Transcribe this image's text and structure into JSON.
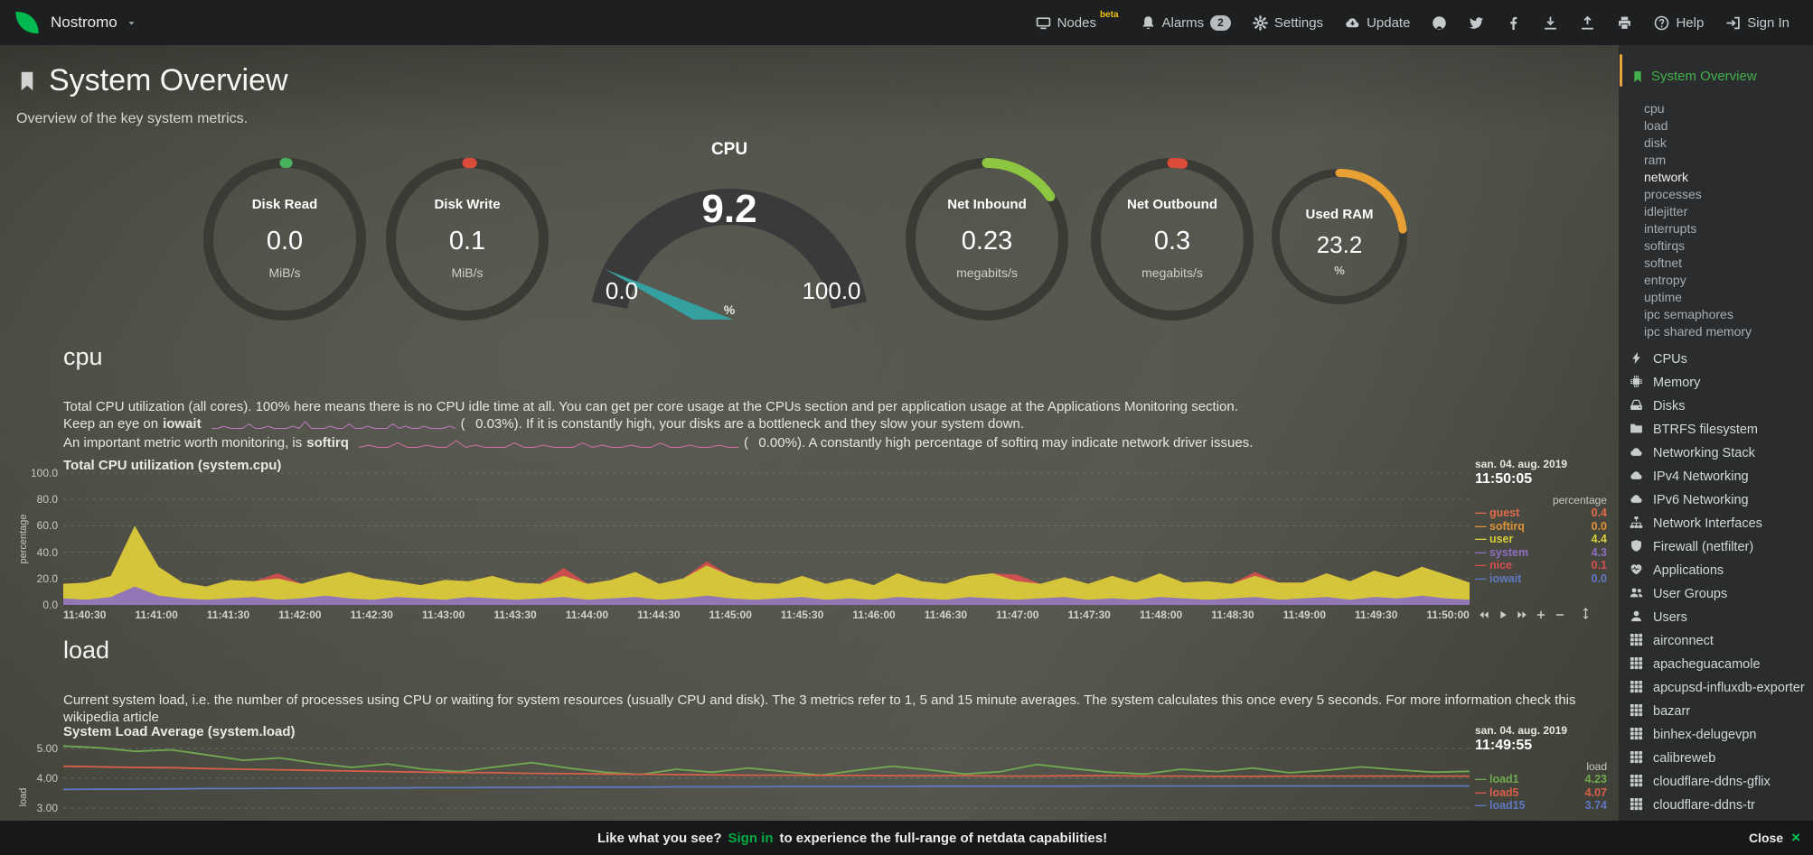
{
  "topbar": {
    "brand": "Nostromo",
    "items": [
      {
        "id": "nodes",
        "icon": "nodes-icon",
        "label": "Nodes",
        "sup": "beta"
      },
      {
        "id": "alarms",
        "icon": "bell-icon",
        "label": "Alarms",
        "badge": "2"
      },
      {
        "id": "settings",
        "icon": "gear-icon",
        "label": "Settings"
      },
      {
        "id": "update",
        "icon": "cloud-update-icon",
        "label": "Update"
      },
      {
        "id": "github",
        "icon": "github-icon"
      },
      {
        "id": "twitter",
        "icon": "twitter-icon"
      },
      {
        "id": "facebook",
        "icon": "facebook-icon"
      },
      {
        "id": "import",
        "icon": "download-icon"
      },
      {
        "id": "export",
        "icon": "upload-icon"
      },
      {
        "id": "print",
        "icon": "print-icon"
      },
      {
        "id": "help",
        "icon": "help-icon",
        "label": "Help"
      },
      {
        "id": "signin",
        "icon": "signin-icon",
        "label": "Sign In"
      }
    ]
  },
  "page": {
    "title": "System Overview",
    "subtitle": "Overview of the key system metrics."
  },
  "gauges": [
    {
      "type": "easypie",
      "label": "Disk Read",
      "value": "0.0",
      "unit": "MiB/s",
      "color": "#46b15a",
      "fraction": 0.006
    },
    {
      "type": "easypie",
      "label": "Disk Write",
      "value": "0.1",
      "unit": "MiB/s",
      "color": "#dd4b39",
      "fraction": 0.01
    },
    {
      "type": "gauge",
      "label": "CPU",
      "value": "9.2",
      "min": "0.0",
      "max": "100.0",
      "unit": "%",
      "color": "#35a0a0",
      "fraction": 0.092
    },
    {
      "type": "easypie",
      "label": "Net Inbound",
      "value": "0.23",
      "unit": "megabits/s",
      "color": "#8fc641",
      "fraction": 0.155
    },
    {
      "type": "easypie",
      "label": "Net Outbound",
      "value": "0.3",
      "unit": "megabits/s",
      "color": "#dd4b39",
      "fraction": 0.022
    },
    {
      "type": "easypie",
      "small": true,
      "label": "Used RAM",
      "value": "23.2",
      "unit": "%",
      "color": "#e8a035",
      "fraction": 0.232
    }
  ],
  "cpu_section": {
    "heading": "cpu",
    "para1": "Total CPU utilization (all cores). 100% here means there is no CPU idle time at all. You can get per core usage at the CPUs section and per application usage at the Applications Monitoring section.",
    "iowait": {
      "prefix": "Keep an eye on",
      "keyword": "iowait",
      "open": "(",
      "value": "0.03%",
      "rest": "). If it is constantly high, your disks are a bottleneck and they slow your system down.",
      "spark_color": "#c17ac4",
      "spark_values": [
        0,
        0,
        1,
        0,
        0,
        0,
        2,
        0,
        0,
        1,
        0,
        0,
        0,
        1,
        0,
        3,
        0,
        0,
        0,
        1,
        0,
        0,
        2,
        0,
        0,
        1,
        0,
        0,
        0,
        2,
        0,
        1,
        0,
        0,
        1,
        0,
        0,
        0,
        1,
        0
      ]
    },
    "softirq": {
      "prefix": "An important metric worth monitoring, is",
      "keyword": "softirq",
      "open": "(",
      "value": "0.00%",
      "rest": "). A constantly high percentage of softirq may indicate network driver issues.",
      "spark_color": "#d4719e",
      "spark_values": [
        0,
        1,
        0,
        0,
        2,
        0,
        0,
        1,
        0,
        0,
        3,
        0,
        1,
        0,
        0,
        0,
        2,
        0,
        0,
        1,
        0,
        0,
        0,
        2,
        0,
        1,
        0,
        0,
        1,
        0,
        0,
        2,
        0,
        0,
        1,
        0,
        0,
        1,
        0,
        0
      ]
    }
  },
  "load_section": {
    "heading": "load",
    "para1": "Current system load, i.e. the number of processes using CPU or waiting for system resources (usually CPU and disk). The 3 metrics refer to 1, 5 and 15 minute averages. The system calculates this once every 5 seconds. For more information check this wikipedia article"
  },
  "sidebar": {
    "active": "System Overview",
    "highlight": "network",
    "toc": [
      "cpu",
      "load",
      "disk",
      "ram",
      "network",
      "processes",
      "idlejitter",
      "interrupts",
      "softirqs",
      "softnet",
      "entropy",
      "uptime",
      "ipc semaphores",
      "ipc shared memory"
    ],
    "menus": [
      {
        "label": "CPUs",
        "icon": "bolt-icon"
      },
      {
        "label": "Memory",
        "icon": "chip-icon"
      },
      {
        "label": "Disks",
        "icon": "disk-icon"
      },
      {
        "label": "BTRFS filesystem",
        "icon": "folder-icon"
      },
      {
        "label": "Networking Stack",
        "icon": "cloud-icon"
      },
      {
        "label": "IPv4 Networking",
        "icon": "cloud-icon"
      },
      {
        "label": "IPv6 Networking",
        "icon": "cloud-icon"
      },
      {
        "label": "Network Interfaces",
        "icon": "network-icon"
      },
      {
        "label": "Firewall (netfilter)",
        "icon": "shield-icon"
      },
      {
        "label": "Applications",
        "icon": "heartbeat-icon"
      },
      {
        "label": "User Groups",
        "icon": "users-icon"
      },
      {
        "label": "Users",
        "icon": "user-icon"
      },
      {
        "label": "airconnect",
        "icon": "grid-icon"
      },
      {
        "label": "apacheguacamole",
        "icon": "grid-icon"
      },
      {
        "label": "apcupsd-influxdb-exporter",
        "icon": "grid-icon"
      },
      {
        "label": "bazarr",
        "icon": "grid-icon"
      },
      {
        "label": "binhex-delugevpn",
        "icon": "grid-icon"
      },
      {
        "label": "calibreweb",
        "icon": "grid-icon"
      },
      {
        "label": "cloudflare-ddns-gflix",
        "icon": "grid-icon"
      },
      {
        "label": "cloudflare-ddns-tr",
        "icon": "grid-icon"
      }
    ]
  },
  "footer": {
    "prefix": "Like what you see?",
    "signin": "Sign in",
    "suffix": "to experience the full-range of netdata capabilities!",
    "close_label": "Close",
    "close_icon": "×"
  },
  "chart_data": [
    {
      "id": "cpu",
      "type": "area",
      "title": "Total CPU utilization (system.cpu)",
      "date": "san. 04. aug. 2019",
      "time": "11:50:05",
      "unit": "percentage",
      "ylabel": "percentage",
      "ylim": [
        0,
        100
      ],
      "yticks": [
        [
          "100.0",
          100
        ],
        [
          "80.0",
          80
        ],
        [
          "60.0",
          60
        ],
        [
          "40.0",
          40
        ],
        [
          "20.0",
          20
        ],
        [
          "0.0",
          0
        ]
      ],
      "xticks": [
        "11:40:30",
        "11:41:00",
        "11:41:30",
        "11:42:00",
        "11:42:30",
        "11:43:00",
        "11:43:30",
        "11:44:00",
        "11:44:30",
        "11:45:00",
        "11:45:30",
        "11:46:00",
        "11:46:30",
        "11:47:00",
        "11:47:30",
        "11:48:00",
        "11:48:30",
        "11:49:00",
        "11:49:30",
        "11:50:00"
      ],
      "series": [
        {
          "name": "system",
          "color": "#8d6fc0",
          "values": [
            5,
            4,
            6,
            14,
            7,
            5,
            4,
            5,
            6,
            4,
            5,
            7,
            5,
            4,
            6,
            5,
            4,
            6,
            5,
            4,
            5,
            6,
            4,
            5,
            6,
            4,
            5,
            7,
            5,
            4,
            5,
            6,
            4,
            5,
            4,
            6,
            5,
            4,
            6,
            5,
            4,
            5,
            6,
            4,
            5,
            4,
            6,
            5,
            4,
            5,
            6,
            4,
            5,
            6,
            4,
            6,
            5,
            7,
            5,
            4
          ]
        },
        {
          "name": "user",
          "color": "#d6cf3a",
          "values": [
            11,
            13,
            16,
            46,
            22,
            12,
            10,
            14,
            12,
            16,
            11,
            14,
            20,
            16,
            12,
            10,
            15,
            12,
            17,
            13,
            11,
            16,
            12,
            14,
            19,
            12,
            15,
            23,
            17,
            13,
            11,
            16,
            12,
            15,
            11,
            18,
            13,
            12,
            16,
            19,
            14,
            11,
            15,
            12,
            17,
            13,
            18,
            12,
            14,
            11,
            16,
            13,
            12,
            18,
            14,
            20,
            16,
            22,
            18,
            13
          ]
        },
        {
          "name": "nice",
          "color": "#d54f4f",
          "values": [
            0,
            0,
            0,
            0,
            0,
            0,
            0,
            0,
            0,
            4,
            0,
            0,
            0,
            0,
            0,
            0,
            0,
            0,
            0,
            0,
            0,
            6,
            0,
            0,
            0,
            0,
            0,
            3,
            0,
            0,
            0,
            0,
            0,
            0,
            0,
            0,
            0,
            0,
            0,
            0,
            5,
            0,
            0,
            0,
            0,
            0,
            0,
            0,
            0,
            0,
            3,
            0,
            0,
            0,
            0,
            0,
            0,
            0,
            0,
            0
          ]
        }
      ],
      "legend": [
        {
          "name": "guest",
          "color": "#e06c4c",
          "value": "0.4"
        },
        {
          "name": "softirq",
          "color": "#dd9336",
          "value": "0.0"
        },
        {
          "name": "user",
          "color": "#d6cf3a",
          "value": "4.4"
        },
        {
          "name": "system",
          "color": "#8d6fc0",
          "value": "4.3"
        },
        {
          "name": "nice",
          "color": "#d54f4f",
          "value": "0.1"
        },
        {
          "name": "iowait",
          "color": "#5f78c1",
          "value": "0.0"
        }
      ],
      "toolbar": [
        "skip-back-icon",
        "play-icon",
        "skip-forward-icon",
        "plus-icon",
        "minus-icon"
      ],
      "resize": "resize-icon"
    },
    {
      "id": "load",
      "type": "line",
      "title": "System Load Average (system.load)",
      "date": "san. 04. aug. 2019",
      "time": "11:49:55",
      "unit": "load",
      "ylabel": "load",
      "ylim": [
        1.42,
        5.3
      ],
      "yticks": [
        [
          "5.00",
          5
        ],
        [
          "4.00",
          4
        ],
        [
          "3.00",
          3
        ]
      ],
      "series": [
        {
          "name": "load1",
          "color": "#6faa4e",
          "values": [
            5.08,
            5.02,
            4.9,
            4.95,
            4.78,
            4.6,
            4.68,
            4.5,
            4.36,
            4.48,
            4.3,
            4.22,
            4.38,
            4.52,
            4.34,
            4.2,
            4.12,
            4.3,
            4.2,
            4.34,
            4.22,
            4.1,
            4.26,
            4.4,
            4.28,
            4.14,
            4.22,
            4.46,
            4.32,
            4.2,
            4.14,
            4.3,
            4.22,
            4.34,
            4.18,
            4.26,
            4.38,
            4.28,
            4.2,
            4.23
          ]
        },
        {
          "name": "load5",
          "color": "#d8604a",
          "values": [
            4.4,
            4.38,
            4.36,
            4.35,
            4.32,
            4.3,
            4.28,
            4.26,
            4.24,
            4.22,
            4.2,
            4.19,
            4.18,
            4.16,
            4.15,
            4.14,
            4.13,
            4.12,
            4.11,
            4.1,
            4.1,
            4.09,
            4.09,
            4.08,
            4.08,
            4.08,
            4.07,
            4.07,
            4.08,
            4.08,
            4.07,
            4.07,
            4.06,
            4.06,
            4.07,
            4.07,
            4.07,
            4.07,
            4.07,
            4.07
          ]
        },
        {
          "name": "load15",
          "color": "#5f78c1",
          "values": [
            3.62,
            3.63,
            3.63,
            3.64,
            3.65,
            3.65,
            3.66,
            3.66,
            3.67,
            3.67,
            3.68,
            3.68,
            3.69,
            3.69,
            3.7,
            3.7,
            3.7,
            3.71,
            3.71,
            3.71,
            3.72,
            3.72,
            3.72,
            3.72,
            3.73,
            3.73,
            3.73,
            3.73,
            3.73,
            3.74,
            3.74,
            3.74,
            3.74,
            3.74,
            3.74,
            3.74,
            3.74,
            3.74,
            3.74,
            3.74
          ]
        }
      ],
      "legend": [
        {
          "name": "load1",
          "color": "#6faa4e",
          "value": "4.23"
        },
        {
          "name": "load5",
          "color": "#d8604a",
          "value": "4.07"
        },
        {
          "name": "load15",
          "color": "#5f78c1",
          "value": "3.74"
        }
      ]
    }
  ]
}
